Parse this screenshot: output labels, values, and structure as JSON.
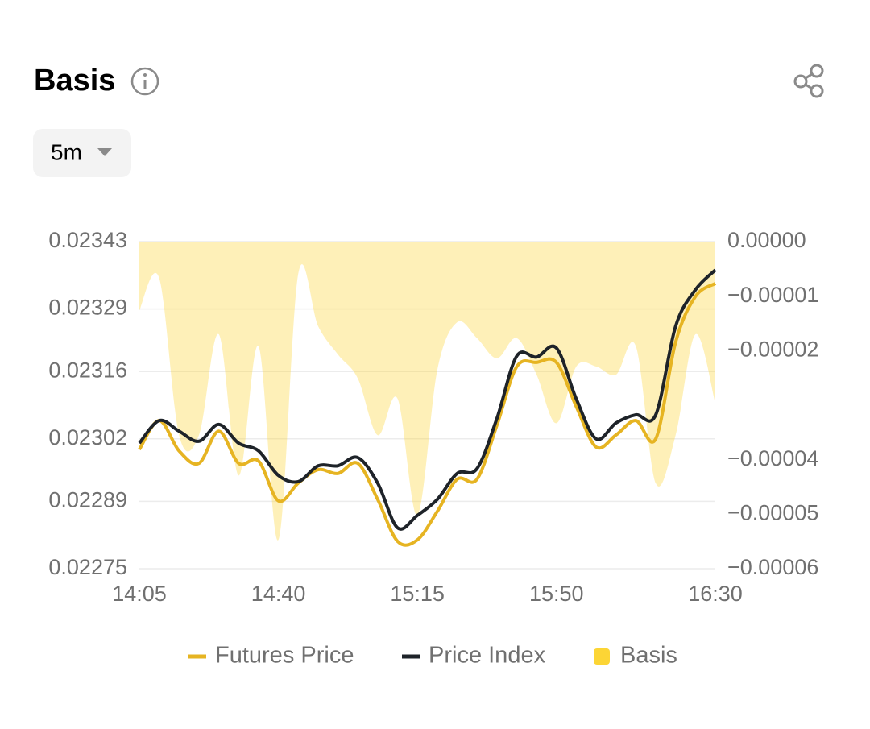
{
  "ui": {
    "interval": "5m"
  },
  "chart_data": {
    "type": "line",
    "title": "Basis",
    "categories": [
      "14:05",
      null,
      null,
      null,
      null,
      null,
      null,
      "14:40",
      null,
      null,
      null,
      null,
      null,
      null,
      "15:15",
      null,
      null,
      null,
      null,
      null,
      null,
      "15:50",
      null,
      null,
      null,
      null,
      null,
      null,
      null,
      "16:30"
    ],
    "ylim": [
      0.02275,
      0.02343
    ],
    "yticks": [
      0.02343,
      0.02329,
      0.02316,
      0.02302,
      0.02289,
      0.02275
    ],
    "y2lim": [
      -6e-05,
      0
    ],
    "y2ticks": [
      {
        "value": 0,
        "label": "0.00000"
      },
      {
        "value": -1e-05,
        "label": "−0.00001"
      },
      {
        "value": -2e-05,
        "label": "−0.00002"
      },
      {
        "value": -4e-05,
        "label": "−0.00004"
      },
      {
        "value": -5e-05,
        "label": "−0.00005"
      },
      {
        "value": -6e-05,
        "label": "−0.00006"
      }
    ],
    "grid": true,
    "series": [
      {
        "name": "Futures Price",
        "color": "#e6b422",
        "values": [
          0.022998,
          0.023058,
          0.022995,
          0.022969,
          0.023036,
          0.022969,
          0.022974,
          0.022891,
          0.022928,
          0.022956,
          0.022948,
          0.022969,
          0.022894,
          0.022807,
          0.02281,
          0.022869,
          0.022936,
          0.022936,
          0.023048,
          0.02317,
          0.023179,
          0.023179,
          0.023087,
          0.023003,
          0.023028,
          0.023058,
          0.02302,
          0.023221,
          0.023316,
          0.023343
        ]
      },
      {
        "name": "Price Index",
        "color": "#1e2329",
        "values": [
          0.023011,
          0.023058,
          0.023036,
          0.023015,
          0.02305,
          0.023011,
          0.022995,
          0.022944,
          0.022931,
          0.022964,
          0.022964,
          0.022981,
          0.022928,
          0.022835,
          0.022861,
          0.022894,
          0.022948,
          0.022958,
          0.023062,
          0.023192,
          0.02319,
          0.023209,
          0.023103,
          0.02302,
          0.023053,
          0.02307,
          0.02307,
          0.023254,
          0.02333,
          0.023371
        ]
      },
      {
        "name": "Basis",
        "color": "#fcd535",
        "axis": "y2",
        "style": "area",
        "values": [
          -1.26e-05,
          -6.7e-06,
          -3.55e-05,
          -3.55e-05,
          -1.7e-05,
          -4.29e-05,
          -1.92e-05,
          -5.47e-05,
          -5.9e-06,
          -1.55e-05,
          -2.07e-05,
          -2.51e-05,
          -3.55e-05,
          -2.88e-05,
          -5.02e-05,
          -2.36e-05,
          -1.48e-05,
          -1.77e-05,
          -2.14e-05,
          -1.77e-05,
          -2.44e-05,
          -3.33e-05,
          -2.29e-05,
          -2.29e-05,
          -2.44e-05,
          -1.92e-05,
          -4.43e-05,
          -3.55e-05,
          -1.7e-05,
          -2.96e-05
        ]
      }
    ]
  }
}
